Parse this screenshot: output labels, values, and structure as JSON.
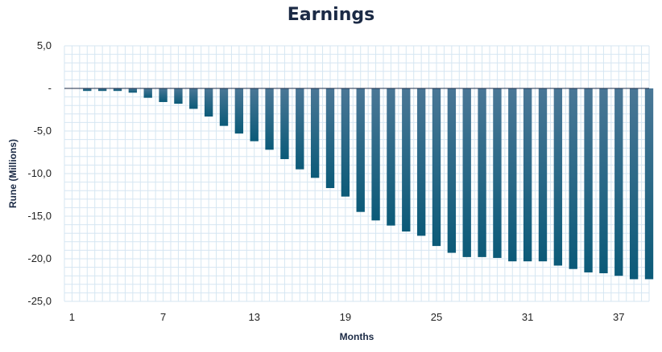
{
  "chart_data": {
    "type": "bar",
    "title": "Earnings",
    "xlabel": "Months",
    "ylabel": "Rune (Millions)",
    "x": [
      1,
      2,
      3,
      4,
      5,
      6,
      7,
      8,
      9,
      10,
      11,
      12,
      13,
      14,
      15,
      16,
      17,
      18,
      19,
      20,
      21,
      22,
      23,
      24,
      25,
      26,
      27,
      28,
      29,
      30,
      31,
      32,
      33,
      34,
      35,
      36,
      37,
      38,
      39
    ],
    "values": [
      0.0,
      -0.3,
      -0.3,
      -0.3,
      -0.5,
      -1.1,
      -1.6,
      -1.8,
      -2.4,
      -3.3,
      -4.4,
      -5.3,
      -6.2,
      -7.2,
      -8.3,
      -9.5,
      -10.5,
      -11.7,
      -12.7,
      -14.5,
      -15.5,
      -16.1,
      -16.8,
      -17.3,
      -18.5,
      -19.3,
      -19.8,
      -19.8,
      -19.9,
      -20.3,
      -20.3,
      -20.3,
      -20.8,
      -21.2,
      -21.6,
      -21.7,
      -22.0,
      -22.4,
      -22.4
    ],
    "ylim": [
      -25,
      5
    ],
    "y_ticks": [
      5,
      0,
      -5,
      -10,
      -15,
      -20,
      -25
    ],
    "y_tick_labels": [
      "5,0",
      "-",
      "-5,0",
      "-10,0",
      "-15,0",
      "-20,0",
      "-25,0"
    ],
    "x_tick_labels": [
      "1",
      "7",
      "13",
      "19",
      "25",
      "31",
      "37"
    ],
    "grid": true,
    "bar_color_top": "#4a7796",
    "bar_color_bottom": "#0b5a78",
    "grid_color": "#d6e6f2"
  }
}
